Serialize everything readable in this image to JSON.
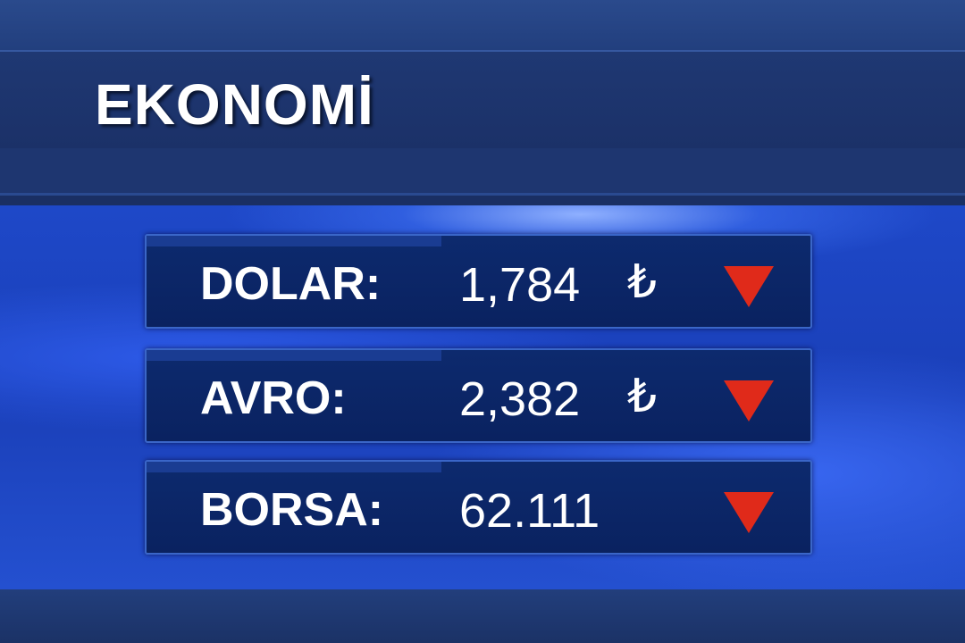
{
  "header": {
    "title": "EKONOMİ"
  },
  "rows": [
    {
      "label": "DOLAR:",
      "value": "1,784",
      "currency": "₺",
      "trend": "down"
    },
    {
      "label": "AVRO:",
      "value": "2,382",
      "currency": "₺",
      "trend": "down"
    },
    {
      "label": "BORSA:",
      "value": "62.111",
      "currency": "",
      "trend": "down"
    }
  ],
  "colors": {
    "down": "#e02a1a",
    "panel": "#0d2a6e",
    "background": "#1e48c8"
  }
}
